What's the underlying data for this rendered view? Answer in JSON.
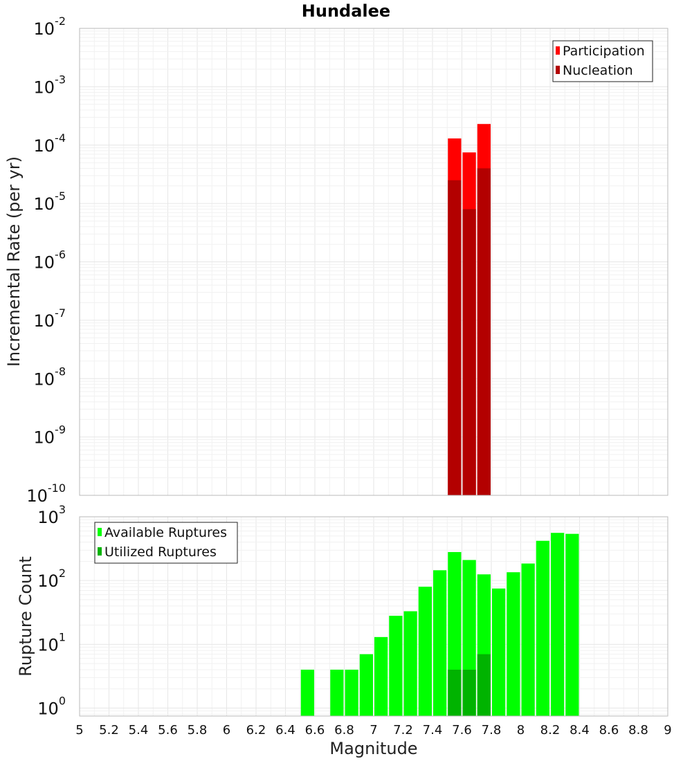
{
  "title": "Hundalee",
  "x_axis": {
    "label": "Magnitude",
    "range": [
      5,
      9
    ],
    "ticks": [
      5,
      5.2,
      5.4,
      5.6,
      5.8,
      6,
      6.2,
      6.4,
      6.6,
      6.8,
      7,
      7.2,
      7.4,
      7.6,
      7.8,
      8,
      8.2,
      8.4,
      8.6,
      8.8,
      9
    ],
    "tick_labels": [
      "5",
      "5.2",
      "5.4",
      "5.6",
      "5.8",
      "6",
      "6.2",
      "6.4",
      "6.6",
      "6.8",
      "7",
      "7.2",
      "7.4",
      "7.6",
      "7.8",
      "8",
      "8.2",
      "8.4",
      "8.6",
      "8.8",
      "9"
    ]
  },
  "chart_data": [
    {
      "type": "bar",
      "ylabel": "Incremental Rate (per yr)",
      "yscale": "log",
      "ylim": [
        1e-10,
        0.01
      ],
      "y_tick_base": "10",
      "y_tick_exponents": [
        "-10",
        "-9",
        "-8",
        "-7",
        "-6",
        "-5",
        "-4",
        "-3",
        "-2"
      ],
      "grid": true,
      "legend_position": "top-right",
      "bin_width": 0.1,
      "x": [
        7.55,
        7.65,
        7.75
      ],
      "series": [
        {
          "name": "Participation",
          "color": "#ff0000",
          "values": [
            0.00013,
            7.5e-05,
            0.00023
          ]
        },
        {
          "name": "Nucleation",
          "color": "#b30000",
          "values": [
            2.5e-05,
            8e-06,
            4e-05
          ]
        }
      ]
    },
    {
      "type": "bar",
      "ylabel": "Rupture Count",
      "yscale": "log",
      "ylim": [
        0.75,
        1000
      ],
      "y_tick_base": "10",
      "y_tick_exponents": [
        "0",
        "1",
        "2",
        "3"
      ],
      "grid": true,
      "legend_position": "top-left",
      "bin_width": 0.1,
      "x": [
        6.55,
        6.65,
        6.75,
        6.85,
        6.95,
        7.05,
        7.15,
        7.25,
        7.35,
        7.45,
        7.55,
        7.65,
        7.75,
        7.85,
        7.95,
        8.05,
        8.15,
        8.25,
        8.35
      ],
      "series": [
        {
          "name": "Available Ruptures",
          "color": "#00ff00",
          "values": [
            4,
            0,
            4,
            4,
            7,
            13,
            28,
            33,
            80,
            145,
            280,
            210,
            125,
            75,
            135,
            185,
            420,
            560,
            540
          ]
        },
        {
          "name": "Utilized Ruptures",
          "color": "#00b300",
          "values": [
            0,
            0,
            0,
            0,
            0,
            0,
            0,
            0,
            0,
            0,
            4,
            4,
            7,
            0,
            0,
            0,
            0,
            0,
            0
          ]
        }
      ]
    }
  ]
}
